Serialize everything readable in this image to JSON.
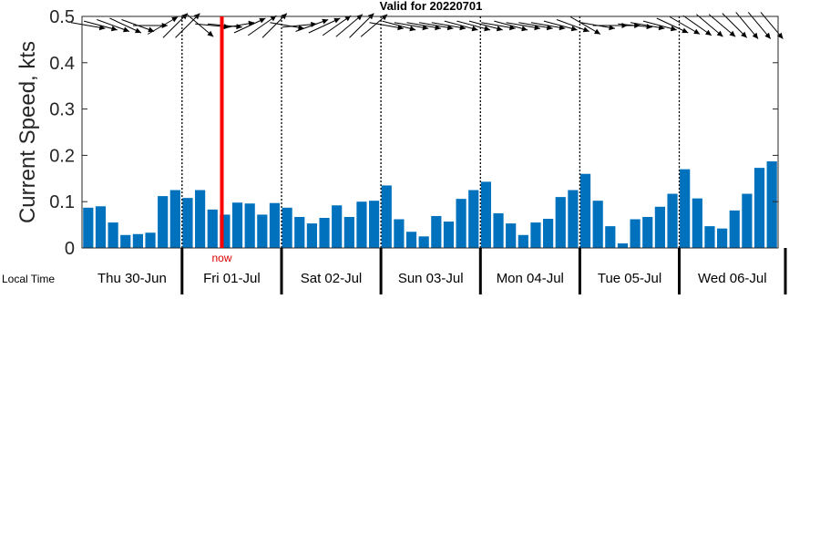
{
  "chart_data": {
    "type": "bar",
    "title": "Valid for 20220701",
    "ylabel": "Current Speed, kts",
    "ylim": [
      0,
      0.5
    ],
    "yticks": [
      "0",
      "0.1",
      "0.2",
      "0.3",
      "0.4",
      "0.5"
    ],
    "ytick_values": [
      0,
      0.1,
      0.2,
      0.3,
      0.4,
      0.5
    ],
    "bar_color": "#0072bd",
    "now_color": "#ff0000",
    "now_label": "now",
    "now_position_bars": 11.25,
    "local_time_label": "Local Time",
    "days": [
      "Thu 30-Jun",
      "Fri 01-Jul",
      "Sat 02-Jul",
      "Sun 03-Jul",
      "Mon 04-Jul",
      "Tue 05-Jul",
      "Wed 06-Jul"
    ],
    "bars_per_day": 8,
    "first_day_bars": 7,
    "values": [
      0.087,
      0.09,
      0.055,
      0.028,
      0.03,
      0.033,
      0.112,
      0.125,
      0.108,
      0.125,
      0.083,
      0.072,
      0.098,
      0.096,
      0.072,
      0.097,
      0.087,
      0.067,
      0.053,
      0.065,
      0.092,
      0.067,
      0.1,
      0.102,
      0.135,
      0.062,
      0.035,
      0.025,
      0.069,
      0.057,
      0.106,
      0.125,
      0.143,
      0.075,
      0.053,
      0.028,
      0.055,
      0.063,
      0.11,
      0.125,
      0.16,
      0.102,
      0.047,
      0.01,
      0.062,
      0.067,
      0.089,
      0.117,
      0.17,
      0.107,
      0.047,
      0.042,
      0.081,
      0.117,
      0.173,
      0.187
    ],
    "direction_deg": [
      100,
      105,
      110,
      115,
      110,
      90,
      60,
      45,
      45,
      130,
      95,
      95,
      80,
      65,
      55,
      45,
      100,
      85,
      70,
      65,
      55,
      50,
      45,
      50,
      100,
      105,
      100,
      100,
      100,
      100,
      105,
      105,
      105,
      100,
      105,
      100,
      100,
      100,
      105,
      110,
      120,
      100,
      90,
      90,
      95,
      100,
      105,
      115,
      120,
      125,
      130,
      130,
      135,
      140,
      140,
      140
    ],
    "grid": false
  }
}
